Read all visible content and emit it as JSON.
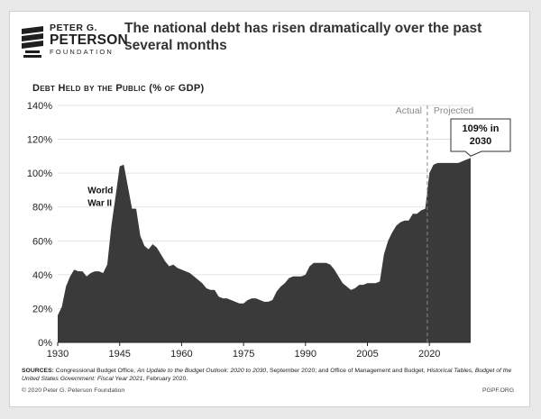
{
  "brand": {
    "line1": "PETER G.",
    "line2": "PETERSON",
    "line3": "FOUNDATION"
  },
  "headline": "The national debt has risen dramatically over the past several months",
  "chart_data": {
    "type": "area",
    "title": "Debt Held by the Public (% of GDP)",
    "xlim": [
      1930,
      2030
    ],
    "ylim": [
      0,
      140
    ],
    "x_ticks": [
      1930,
      1945,
      1960,
      1975,
      1990,
      2005,
      2020
    ],
    "y_ticks": [
      0,
      20,
      40,
      60,
      80,
      100,
      120,
      140
    ],
    "y_tick_suffix": "%",
    "grid": true,
    "fill_color": "#3a3a3a",
    "divider_year": 2019.5,
    "divider_labels": {
      "left": "Actual",
      "right": "Projected"
    },
    "annotations": [
      {
        "text_lines": [
          "World",
          "War II"
        ],
        "x": 1939,
        "y": 88
      },
      {
        "text_lines": [
          "109% in",
          "2030"
        ],
        "x": 2030,
        "y": 109,
        "callout": true
      }
    ],
    "series": [
      {
        "x": [
          1930,
          1931,
          1932,
          1933,
          1934,
          1935,
          1936,
          1937,
          1938,
          1939,
          1940,
          1941,
          1942,
          1943,
          1944,
          1945,
          1946,
          1947,
          1948,
          1949,
          1950,
          1951,
          1952,
          1953,
          1954,
          1955,
          1956,
          1957,
          1958,
          1959,
          1960,
          1961,
          1962,
          1963,
          1964,
          1965,
          1966,
          1967,
          1968,
          1969,
          1970,
          1971,
          1972,
          1973,
          1974,
          1975,
          1976,
          1977,
          1978,
          1979,
          1980,
          1981,
          1982,
          1983,
          1984,
          1985,
          1986,
          1987,
          1988,
          1989,
          1990,
          1991,
          1992,
          1993,
          1994,
          1995,
          1996,
          1997,
          1998,
          1999,
          2000,
          2001,
          2002,
          2003,
          2004,
          2005,
          2006,
          2007,
          2008,
          2009,
          2010,
          2011,
          2012,
          2013,
          2014,
          2015,
          2016,
          2017,
          2018,
          2019,
          2020,
          2021,
          2022,
          2023,
          2024,
          2025,
          2026,
          2027,
          2028,
          2029,
          2030
        ],
        "y": [
          16,
          21,
          33,
          39,
          43,
          42,
          42,
          39,
          41,
          42,
          42,
          41,
          46,
          69,
          86,
          104,
          105,
          92,
          79,
          79,
          63,
          57,
          55,
          58,
          56,
          52,
          48,
          45,
          46,
          44,
          43,
          42,
          41,
          39,
          37,
          35,
          32,
          31,
          31,
          27,
          26,
          26,
          25,
          24,
          23,
          23,
          25,
          26,
          26,
          25,
          24,
          24,
          25,
          30,
          33,
          35,
          38,
          39,
          39,
          39,
          40,
          45,
          47,
          47,
          47,
          47,
          46,
          43,
          39,
          35,
          33,
          31,
          32,
          34,
          34,
          35,
          35,
          35,
          36,
          52,
          60,
          65,
          69,
          71,
          72,
          72,
          76,
          76,
          78,
          79,
          100,
          105,
          106,
          106,
          106,
          106,
          106,
          106,
          107,
          108,
          109
        ]
      }
    ]
  },
  "sources_label": "SOURCES:",
  "sources_rest_1": " Congressional Budget Office, ",
  "sources_italic_1": "An Update to the Budget Outlook: 2020 to 2030",
  "sources_rest_2": ", September 2020; and Office of Management and Budget, ",
  "sources_italic_2": "Historical Tables, Budget of the United States Government: Fiscal Year 2021",
  "sources_rest_3": ", February 2020.",
  "copyright": "© 2020 Peter G. Peterson Foundation",
  "site": "PGPF.ORG"
}
